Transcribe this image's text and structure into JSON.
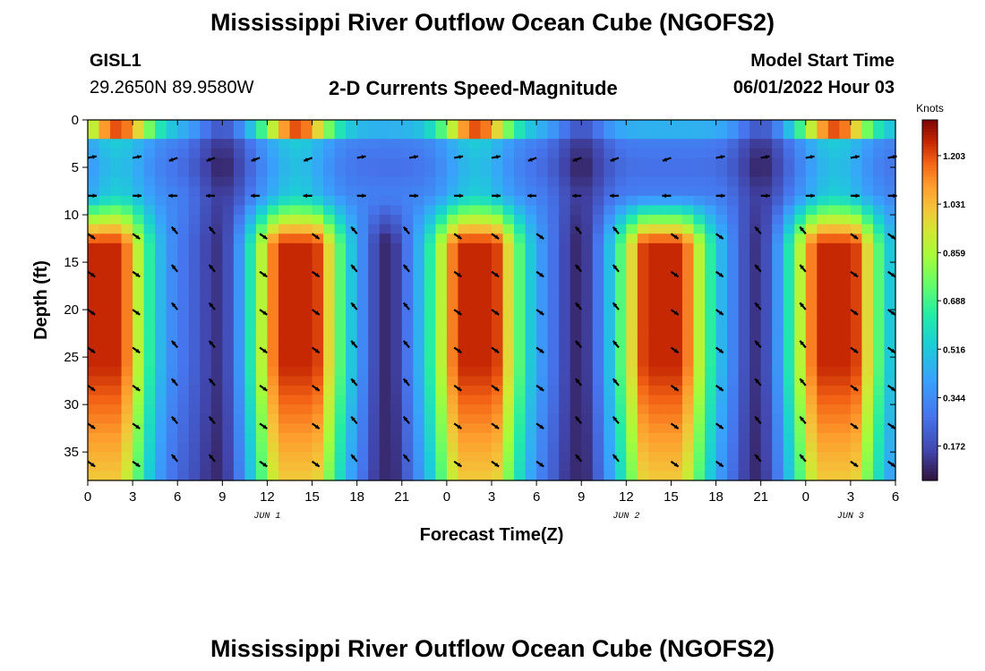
{
  "header": {
    "title": "Mississippi River Outflow Ocean Cube (NGOFS2)",
    "station_id": "GISL1",
    "coords": "29.2650N  89.9580W",
    "subtitle": "2-D Currents Speed-Magnitude",
    "model_label": "Model Start Time",
    "model_time": "06/01/2022 Hour 03"
  },
  "footer": {
    "title": "Mississippi River Outflow Ocean Cube (NGOFS2)"
  },
  "chart_data": {
    "type": "heatmap",
    "title": "2-D Currents Speed-Magnitude",
    "xlabel": "Forecast Time(Z)",
    "ylabel": "Depth (ft)",
    "x_range_hours": [
      0,
      54
    ],
    "y_range_ft": [
      0,
      38
    ],
    "y_inverted": true,
    "x_tick_labels": [
      "0",
      "3",
      "6",
      "9",
      "12",
      "15",
      "18",
      "21",
      "0",
      "3",
      "6",
      "9",
      "12",
      "15",
      "18",
      "21",
      "0",
      "3",
      "6"
    ],
    "y_ticks": [
      0,
      5,
      10,
      15,
      20,
      25,
      30,
      35
    ],
    "date_labels": [
      {
        "label": "JUN 1",
        "hour": 12
      },
      {
        "label": "JUN 2",
        "hour": 36
      },
      {
        "label": "JUN 3",
        "hour": 51
      }
    ],
    "colorbar": {
      "title": "Knots",
      "ticks": [
        1.203,
        1.031,
        0.859,
        0.688,
        0.516,
        0.344,
        0.172
      ],
      "range": [
        0.05,
        1.33
      ]
    },
    "peak_hours": [
      1,
      14,
      26,
      38.5,
      50
    ],
    "min_hours": [
      9,
      20,
      33,
      45
    ],
    "surface_peak_hours": [
      2,
      14,
      26,
      50
    ],
    "surface_min_hours": [
      9,
      33,
      45
    ],
    "speed_range_knots": [
      0.1,
      1.25
    ],
    "vector_depths_ft": [
      4,
      8,
      12,
      16,
      20,
      24,
      28,
      32,
      36
    ],
    "vector_hours": [
      0,
      3,
      6,
      8.5,
      11.5,
      15,
      18,
      21.5,
      24.5,
      27,
      30,
      33,
      35.5,
      39,
      42,
      45,
      48,
      51,
      53.5
    ]
  }
}
